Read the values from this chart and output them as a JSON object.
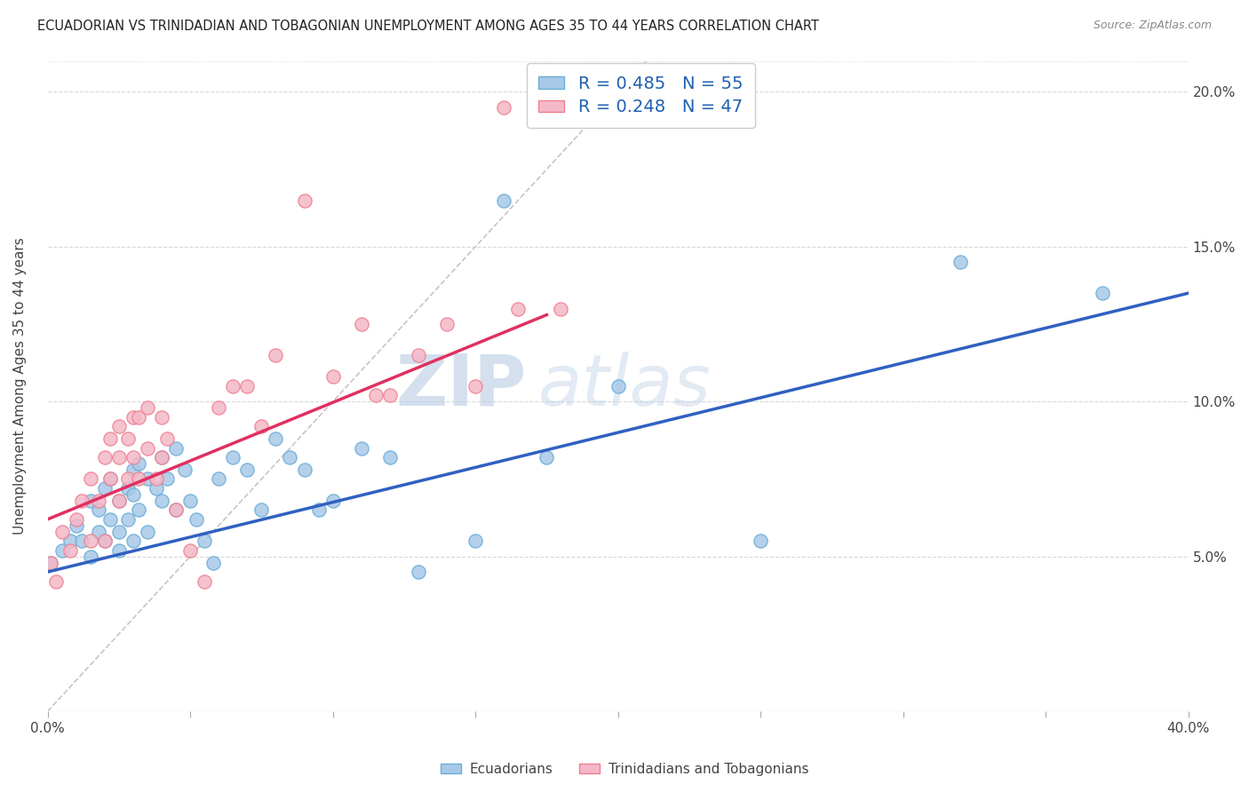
{
  "title": "ECUADORIAN VS TRINIDADIAN AND TOBAGONIAN UNEMPLOYMENT AMONG AGES 35 TO 44 YEARS CORRELATION CHART",
  "source": "Source: ZipAtlas.com",
  "ylabel": "Unemployment Among Ages 35 to 44 years",
  "xlim": [
    0.0,
    0.4
  ],
  "ylim": [
    0.0,
    0.21
  ],
  "x_ticks": [
    0.0,
    0.05,
    0.1,
    0.15,
    0.2,
    0.25,
    0.3,
    0.35,
    0.4
  ],
  "y_ticks": [
    0.0,
    0.05,
    0.1,
    0.15,
    0.2
  ],
  "blue_color": "#a8c8e8",
  "blue_edge_color": "#6baed6",
  "pink_color": "#f4b8c8",
  "pink_edge_color": "#f08090",
  "blue_line_color": "#3060c0",
  "pink_line_color": "#e03060",
  "diag_line_color": "#d0c0c8",
  "legend_blue_R": "0.485",
  "legend_blue_N": "55",
  "legend_pink_R": "0.248",
  "legend_pink_N": "47",
  "blue_scatter_x": [
    0.001,
    0.005,
    0.008,
    0.01,
    0.012,
    0.015,
    0.015,
    0.018,
    0.018,
    0.02,
    0.02,
    0.022,
    0.022,
    0.025,
    0.025,
    0.025,
    0.028,
    0.028,
    0.03,
    0.03,
    0.03,
    0.032,
    0.032,
    0.035,
    0.035,
    0.038,
    0.04,
    0.04,
    0.042,
    0.045,
    0.045,
    0.048,
    0.05,
    0.052,
    0.055,
    0.058,
    0.06,
    0.065,
    0.07,
    0.075,
    0.08,
    0.085,
    0.09,
    0.095,
    0.1,
    0.11,
    0.12,
    0.13,
    0.15,
    0.16,
    0.175,
    0.2,
    0.25,
    0.32,
    0.37
  ],
  "blue_scatter_y": [
    0.048,
    0.052,
    0.055,
    0.06,
    0.055,
    0.05,
    0.068,
    0.065,
    0.058,
    0.072,
    0.055,
    0.075,
    0.062,
    0.068,
    0.058,
    0.052,
    0.072,
    0.062,
    0.078,
    0.07,
    0.055,
    0.08,
    0.065,
    0.075,
    0.058,
    0.072,
    0.082,
    0.068,
    0.075,
    0.085,
    0.065,
    0.078,
    0.068,
    0.062,
    0.055,
    0.048,
    0.075,
    0.082,
    0.078,
    0.065,
    0.088,
    0.082,
    0.078,
    0.065,
    0.068,
    0.085,
    0.082,
    0.045,
    0.055,
    0.165,
    0.082,
    0.105,
    0.055,
    0.145,
    0.135
  ],
  "pink_scatter_x": [
    0.001,
    0.003,
    0.005,
    0.008,
    0.01,
    0.012,
    0.015,
    0.015,
    0.018,
    0.02,
    0.02,
    0.022,
    0.022,
    0.025,
    0.025,
    0.025,
    0.028,
    0.028,
    0.03,
    0.03,
    0.032,
    0.032,
    0.035,
    0.035,
    0.038,
    0.04,
    0.04,
    0.042,
    0.045,
    0.05,
    0.055,
    0.06,
    0.065,
    0.07,
    0.075,
    0.08,
    0.09,
    0.1,
    0.11,
    0.115,
    0.12,
    0.13,
    0.14,
    0.15,
    0.16,
    0.165,
    0.18
  ],
  "pink_scatter_y": [
    0.048,
    0.042,
    0.058,
    0.052,
    0.062,
    0.068,
    0.075,
    0.055,
    0.068,
    0.082,
    0.055,
    0.088,
    0.075,
    0.092,
    0.082,
    0.068,
    0.088,
    0.075,
    0.095,
    0.082,
    0.095,
    0.075,
    0.098,
    0.085,
    0.075,
    0.095,
    0.082,
    0.088,
    0.065,
    0.052,
    0.042,
    0.098,
    0.105,
    0.105,
    0.092,
    0.115,
    0.165,
    0.108,
    0.125,
    0.102,
    0.102,
    0.115,
    0.125,
    0.105,
    0.195,
    0.13,
    0.13
  ],
  "blue_line_x": [
    0.0,
    0.4
  ],
  "blue_line_y": [
    0.045,
    0.135
  ],
  "pink_line_x": [
    0.0,
    0.175
  ],
  "pink_line_y": [
    0.062,
    0.128
  ],
  "diag_line_x": [
    0.0,
    0.21
  ],
  "diag_line_y": [
    0.0,
    0.21
  ],
  "watermark_zip": "ZIP",
  "watermark_atlas": "atlas",
  "background_color": "#ffffff",
  "grid_color": "#d8d8d8"
}
